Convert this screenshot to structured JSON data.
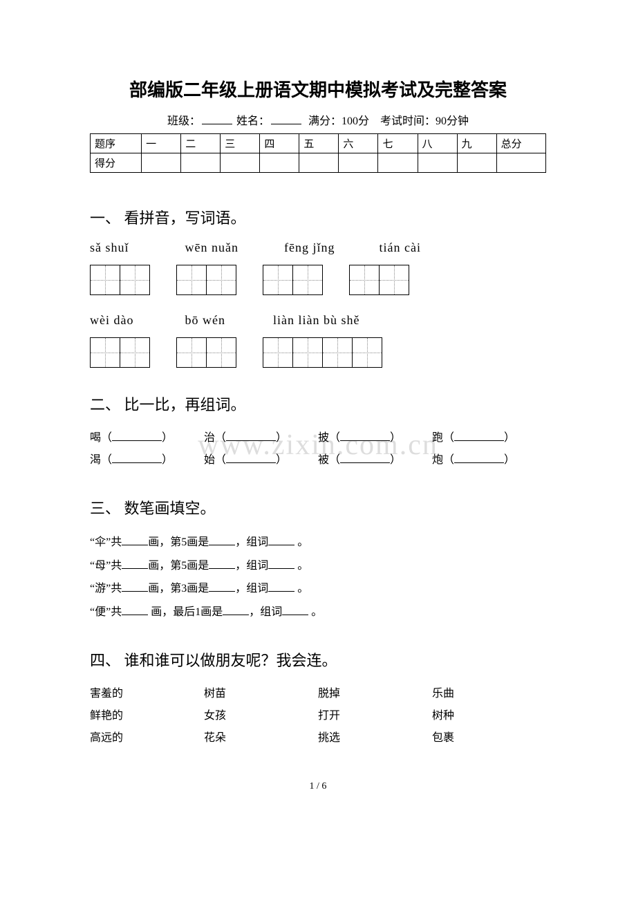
{
  "title": "部编版二年级上册语文期中模拟考试及完整答案",
  "meta": {
    "class_label": "班级：",
    "name_label": "姓名：",
    "full_score_label": "满分：100分",
    "exam_time_label": "考试时间：90分钟"
  },
  "score_table": {
    "row1_label": "题序",
    "row2_label": "得分",
    "cols": [
      "一",
      "二",
      "三",
      "四",
      "五",
      "六",
      "七",
      "八",
      "九",
      "总分"
    ]
  },
  "q1": {
    "heading": "一、 看拼音，写词语。",
    "row1": [
      {
        "pinyin": "sǎ  shuǐ",
        "boxes": 2
      },
      {
        "pinyin": "wēn nuǎn",
        "boxes": 2
      },
      {
        "pinyin": "fēng jǐng",
        "boxes": 2
      },
      {
        "pinyin": "tián  cài",
        "boxes": 2
      }
    ],
    "row2": [
      {
        "pinyin": "wèi  dào",
        "boxes": 2
      },
      {
        "pinyin": "bō  wén",
        "boxes": 2
      },
      {
        "pinyin": "liàn  liàn  bù  shě",
        "boxes": 4
      }
    ]
  },
  "watermark": "www.zixin.com.cn",
  "q2": {
    "heading": "二、 比一比，再组词。",
    "rows": [
      [
        "喝",
        "治",
        "披",
        "跑"
      ],
      [
        "渴",
        "始",
        "被",
        "炮"
      ]
    ]
  },
  "q3": {
    "heading": "三、 数笔画填空。",
    "lines": [
      {
        "char": "伞",
        "stroke": "第5画是",
        "word": "组词"
      },
      {
        "char": "母",
        "stroke": "第5画是",
        "word": "组词"
      },
      {
        "char": "游",
        "stroke": "第3画是",
        "word": "组词"
      },
      {
        "char": "便",
        "stroke": "最后1画是",
        "word": "组词",
        "special": true
      }
    ]
  },
  "q4": {
    "heading": "四、 谁和谁可以做朋友呢？我会连。",
    "rows": [
      [
        "害羞的",
        "树苗",
        "脱掉",
        "乐曲"
      ],
      [
        "鲜艳的",
        "女孩",
        "打开",
        "树种"
      ],
      [
        "高远的",
        "花朵",
        "挑选",
        "包裹"
      ]
    ]
  },
  "page_number": "1 / 6",
  "colors": {
    "text": "#000000",
    "bg": "#ffffff",
    "watermark": "#dddddd",
    "dotted": "#888888"
  }
}
